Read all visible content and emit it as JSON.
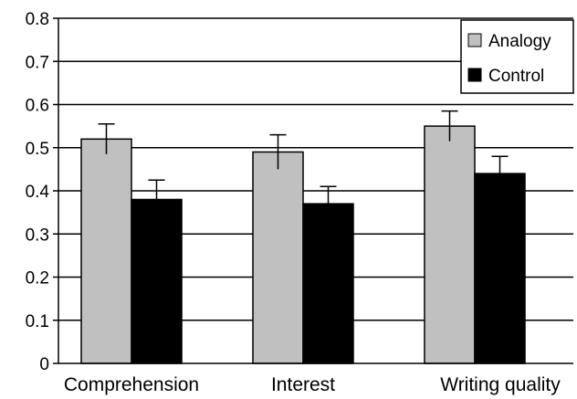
{
  "chart_data": {
    "type": "bar",
    "categories": [
      "Comprehension",
      "Interest",
      "Writing quality"
    ],
    "series": [
      {
        "name": "Analogy",
        "values": [
          0.52,
          0.49,
          0.55
        ],
        "error_upper": [
          0.035,
          0.04,
          0.035
        ],
        "color": "#c0c0c0"
      },
      {
        "name": "Control",
        "values": [
          0.38,
          0.37,
          0.44
        ],
        "error_upper": [
          0.045,
          0.04,
          0.04
        ],
        "color": "#000000"
      }
    ],
    "title": "",
    "xlabel": "",
    "ylabel": "",
    "ylim": [
      0,
      0.8
    ],
    "yticks": [
      "0",
      "0.1",
      "0.2",
      "0.3",
      "0.4",
      "0.5",
      "0.6",
      "0.7",
      "0.8"
    ],
    "grid": true,
    "legend_position": "top-right"
  }
}
